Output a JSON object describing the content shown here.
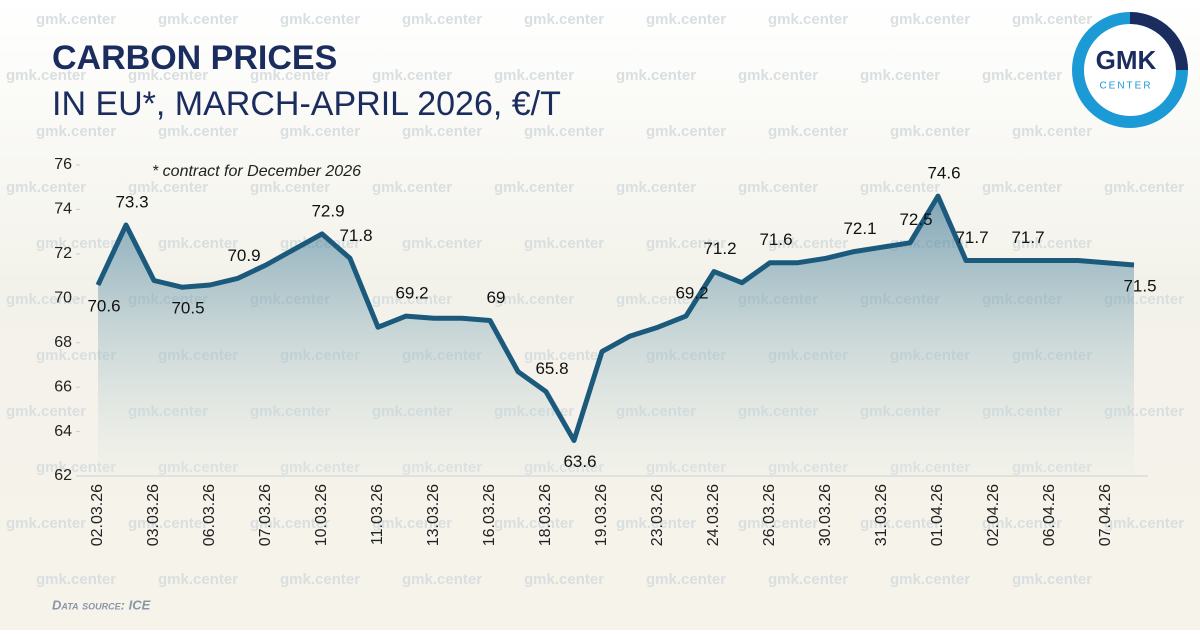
{
  "chart_data": {
    "type": "line",
    "title": "CARBON PRICES",
    "subtitle": "IN EU*, MARCH-APRIL 2026, €/T",
    "note": "* contract for December 2026",
    "source": "Data source: ICE",
    "logo": "GMK",
    "logo_sub": "CENTER",
    "watermark": "gmk.center",
    "categories": [
      "02.03.26",
      null,
      "03.03.26",
      null,
      "06.03.26",
      null,
      "07.03.26",
      null,
      "10.03.26",
      null,
      "11.03.26",
      null,
      "13.03.26",
      null,
      "16.03.26",
      null,
      "18.03.26",
      null,
      "19.03.26",
      null,
      "23.03.26",
      null,
      "24.03.26",
      null,
      "26.03.26",
      null,
      "30.03.26",
      null,
      "31.03.26",
      null,
      "01.04.26",
      null,
      "02.04.26",
      null,
      "06.04.26",
      null,
      "07.04.26",
      null
    ],
    "values": [
      70.6,
      73.3,
      70.8,
      70.5,
      70.6,
      70.9,
      71.5,
      72.2,
      72.9,
      71.8,
      68.7,
      69.2,
      69.1,
      69.1,
      69.0,
      66.7,
      65.8,
      63.6,
      67.6,
      68.3,
      68.7,
      69.2,
      71.2,
      70.7,
      71.6,
      71.6,
      71.8,
      72.1,
      72.3,
      72.5,
      74.6,
      71.7,
      71.7,
      71.7,
      71.7,
      71.7,
      71.6,
      71.5
    ],
    "value_labels": [
      "70.6",
      "73.3",
      null,
      "70.5",
      null,
      "70.9",
      null,
      null,
      "72.9",
      "71.8",
      null,
      "69.2",
      null,
      null,
      "69",
      null,
      "65.8",
      "63.6",
      null,
      null,
      null,
      "69.2",
      "71.2",
      null,
      "71.6",
      null,
      null,
      "72.1",
      null,
      "72.5",
      "74.6",
      "71.7",
      null,
      "71.7",
      null,
      null,
      null,
      "71.5"
    ],
    "color": "#1b5a7c",
    "ylim": [
      62,
      76
    ],
    "yticks": [
      62,
      64,
      66,
      68,
      70,
      72,
      74,
      76
    ]
  }
}
